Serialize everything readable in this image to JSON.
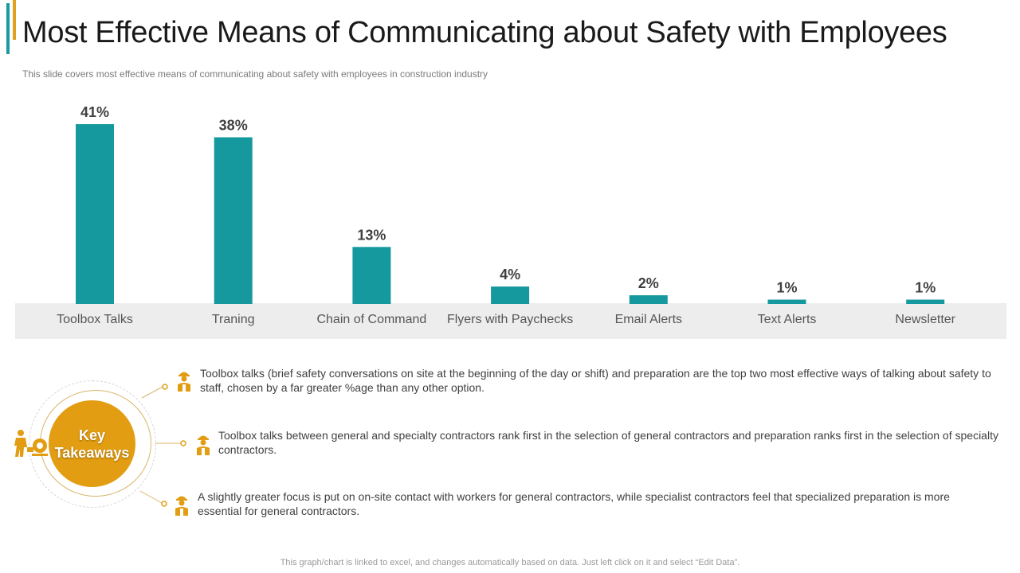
{
  "page": {
    "title": "Most Effective Means of Communicating about Safety with Employees",
    "subtitle": "This slide covers  most effective  means of communicating about safety with employees in construction industry",
    "footer": "This graph/chart is linked to excel,  and changes automatically based on data. Just left click on it and select “Edit Data”."
  },
  "colors": {
    "bar": "#16999e",
    "axis_band": "#ededed",
    "accent_teal": "#1a9aa0",
    "accent_gold": "#e29d12"
  },
  "chart_data": {
    "type": "bar",
    "title": "",
    "xlabel": "",
    "ylabel": "",
    "categories": [
      "Toolbox Talks",
      "Traning",
      "Chain of Command",
      "Flyers with Paychecks",
      "Email Alerts",
      "Text Alerts",
      "Newsletter"
    ],
    "values": [
      41,
      38,
      13,
      4,
      2,
      1,
      1
    ],
    "value_labels": [
      "41%",
      "38%",
      "13%",
      "4%",
      "2%",
      "1%",
      "1%"
    ],
    "unit": "%",
    "ylim": [
      0,
      41
    ],
    "grid": false,
    "legend": "none"
  },
  "takeaways": {
    "badge_line1": "Key",
    "badge_line2": "Takeaways",
    "points": [
      "Toolbox talks (brief safety conversations on site at the beginning of the day or shift) and preparation are the top two most effective ways of talking about safety to staff, chosen by a far greater %age than any other option.",
      "Toolbox talks between general and specialty contractors rank first in the selection of general contractors and preparation ranks first in the selection of specialty contractors.",
      "A slightly greater focus is put on on-site contact with workers for general contractors, while specialist contractors feel that specialized preparation is more essential for general contractors."
    ],
    "icons": [
      "worker-icon",
      "worker-icon",
      "worker-icon",
      "worker-group-icon"
    ]
  }
}
